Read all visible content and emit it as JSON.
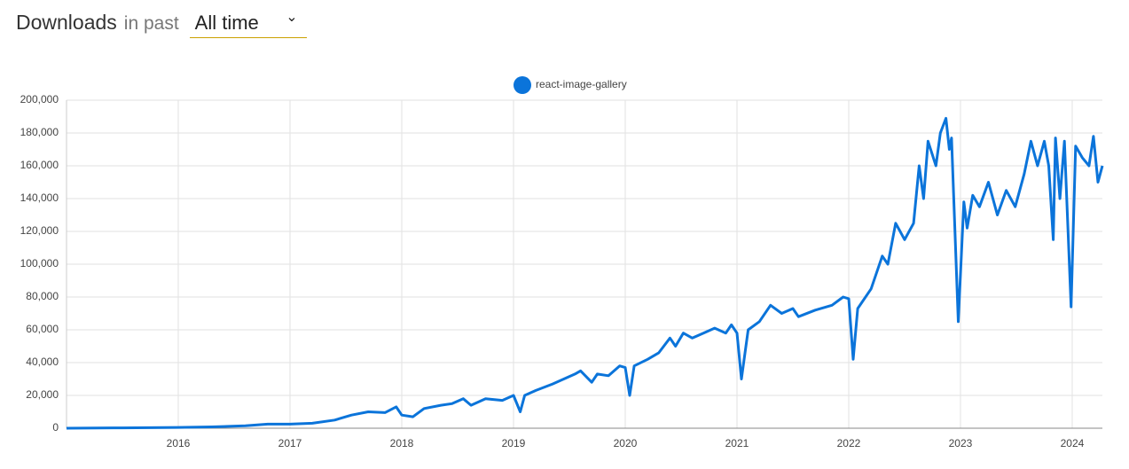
{
  "header": {
    "title": "Downloads",
    "period_label": "in past",
    "period_value": "All time"
  },
  "chart_data": {
    "type": "line",
    "x": [
      2015.0,
      2015.5,
      2016.0,
      2016.3,
      2016.6,
      2016.8,
      2017.0,
      2017.2,
      2017.4,
      2017.55,
      2017.7,
      2017.85,
      2017.95,
      2018.0,
      2018.1,
      2018.2,
      2018.35,
      2018.45,
      2018.55,
      2018.62,
      2018.75,
      2018.9,
      2019.0,
      2019.06,
      2019.1,
      2019.2,
      2019.35,
      2019.45,
      2019.55,
      2019.6,
      2019.7,
      2019.75,
      2019.85,
      2019.95,
      2020.0,
      2020.04,
      2020.08,
      2020.2,
      2020.3,
      2020.4,
      2020.45,
      2020.52,
      2020.6,
      2020.7,
      2020.8,
      2020.9,
      2020.95,
      2021.0,
      2021.04,
      2021.1,
      2021.2,
      2021.3,
      2021.4,
      2021.5,
      2021.55,
      2021.7,
      2021.85,
      2021.95,
      2022.0,
      2022.04,
      2022.08,
      2022.2,
      2022.3,
      2022.35,
      2022.42,
      2022.5,
      2022.58,
      2022.63,
      2022.67,
      2022.71,
      2022.78,
      2022.82,
      2022.87,
      2022.9,
      2022.92,
      2022.98,
      2023.03,
      2023.06,
      2023.11,
      2023.17,
      2023.25,
      2023.33,
      2023.41,
      2023.49,
      2023.57,
      2023.63,
      2023.69,
      2023.75,
      2023.79,
      2023.83,
      2023.85,
      2023.89,
      2023.93,
      2023.99,
      2024.03,
      2024.09,
      2024.15,
      2024.19,
      2024.23,
      2024.27
    ],
    "series": [
      {
        "name": "react-image-gallery",
        "color": "#0b74da",
        "values": [
          0,
          200,
          500,
          800,
          1500,
          2500,
          2500,
          3000,
          5000,
          8000,
          10000,
          9500,
          13000,
          8000,
          7000,
          12000,
          14000,
          15000,
          18000,
          14000,
          18000,
          17000,
          20000,
          10000,
          20000,
          23000,
          27000,
          30000,
          33000,
          35000,
          28000,
          33000,
          32000,
          38000,
          37000,
          20000,
          38000,
          42000,
          46000,
          55000,
          50000,
          58000,
          55000,
          58000,
          61000,
          58000,
          63000,
          58000,
          30000,
          60000,
          65000,
          75000,
          70000,
          73000,
          68000,
          72000,
          75000,
          80000,
          79000,
          42000,
          73000,
          85000,
          105000,
          100000,
          125000,
          115000,
          125000,
          160000,
          140000,
          175000,
          160000,
          180000,
          189000,
          170000,
          177000,
          65000,
          138000,
          122000,
          142000,
          135000,
          150000,
          130000,
          145000,
          135000,
          155000,
          175000,
          160000,
          175000,
          160000,
          115000,
          177000,
          140000,
          175000,
          74000,
          172000,
          165000,
          160000,
          178000,
          150000,
          160000
        ]
      }
    ],
    "xlim": [
      2015.0,
      2024.27
    ],
    "ylim": [
      0,
      200000
    ],
    "xticks": [
      2016,
      2017,
      2018,
      2019,
      2020,
      2021,
      2022,
      2023,
      2024
    ],
    "yticks": [
      0,
      {
        "value": 20000,
        "label": "20,000"
      },
      {
        "value": 40000,
        "label": "40,000"
      },
      {
        "value": 60000,
        "label": "60,000"
      },
      {
        "value": 80000,
        "label": "80,000"
      },
      {
        "value": 100000,
        "label": "100,000"
      },
      {
        "value": 120000,
        "label": "120,000"
      },
      {
        "value": 140000,
        "label": "140,000"
      },
      {
        "value": 160000,
        "label": "160,000"
      },
      {
        "value": 180000,
        "label": "180,000"
      },
      {
        "value": 200000,
        "label": "200,000"
      }
    ],
    "grid": true
  }
}
